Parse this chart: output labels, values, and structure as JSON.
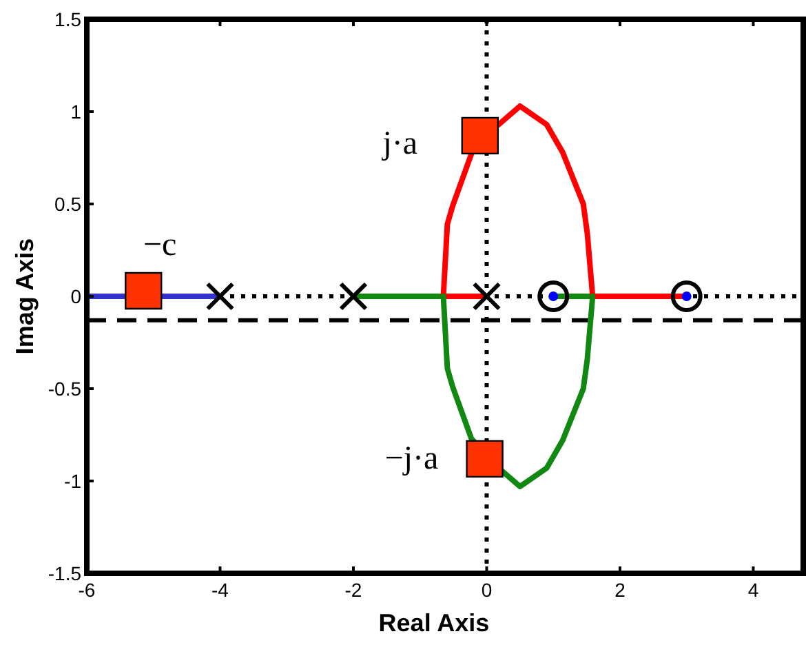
{
  "chart_data": {
    "type": "line",
    "xlabel": "Real Axis",
    "ylabel": "Imag Axis",
    "xlim": [
      -6,
      4.75
    ],
    "ylim": [
      -1.5,
      1.5
    ],
    "xticks": [
      -6,
      -4,
      -2,
      0,
      2,
      4
    ],
    "yticks": [
      -1.5,
      -1,
      -0.5,
      0,
      0.5,
      1,
      1.5
    ],
    "grid": false,
    "series": [
      {
        "color": "#3333cc",
        "x": [
          -6,
          -4
        ],
        "values": [
          0,
          0
        ]
      },
      {
        "color": "#118811",
        "x": [
          -2,
          -0.65
        ],
        "values": [
          0,
          0
        ]
      },
      {
        "color": "#ff0000",
        "x": [
          -0.65,
          0
        ],
        "values": [
          0,
          0
        ]
      },
      {
        "color": "#118811",
        "x": [
          1,
          1.59
        ],
        "values": [
          0,
          0
        ]
      },
      {
        "color": "#ff0000",
        "x": [
          1.59,
          3
        ],
        "values": [
          0,
          0
        ]
      },
      {
        "color": "#ff0000",
        "x": [
          -0.65,
          -0.59,
          -0.51,
          -0.23,
          -0.1,
          0.18,
          0.5,
          0.9,
          1.14,
          1.45,
          1.51,
          1.59
        ],
        "values": [
          0,
          0.39,
          0.49,
          0.77,
          0.87,
          0.93,
          1.03,
          0.93,
          0.78,
          0.5,
          0.34,
          0
        ]
      },
      {
        "color": "#118811",
        "x": [
          -0.65,
          -0.59,
          -0.51,
          -0.23,
          0.18,
          0.5,
          0.9,
          1.14,
          1.45,
          1.51,
          1.59
        ],
        "values": [
          0,
          -0.39,
          -0.49,
          -0.77,
          -0.93,
          -1.03,
          -0.93,
          -0.78,
          -0.5,
          -0.34,
          0
        ]
      },
      {
        "type": "scatter",
        "marker": "cross",
        "color": "#000000",
        "x": [
          -4,
          -2,
          0
        ],
        "values": [
          0,
          0,
          0
        ]
      },
      {
        "type": "scatter",
        "marker": "circle",
        "color": "#0000ff",
        "x": [
          1,
          3
        ],
        "values": [
          0,
          0
        ]
      },
      {
        "type": "scatter",
        "marker": "circle",
        "color": "#000000",
        "x": [
          1,
          3
        ],
        "values": [
          0,
          0
        ]
      },
      {
        "type": "scatter",
        "marker": "square",
        "color": "#ff3300",
        "x": [
          -5.15,
          -0.1,
          -0.03
        ],
        "values": [
          0.03,
          0.87,
          -0.88
        ]
      }
    ],
    "ref_lines": [
      {
        "axis": "x",
        "value": 0,
        "line_style": "dotted",
        "color": "#000000"
      },
      {
        "axis": "y",
        "value": 0,
        "line_style": "dotted",
        "color": "#000000"
      },
      {
        "axis": "y",
        "value": -0.13,
        "line_style": "dashed",
        "color": "#000000"
      }
    ],
    "annotations": [
      "−c",
      "j·a",
      "−j·a"
    ]
  }
}
